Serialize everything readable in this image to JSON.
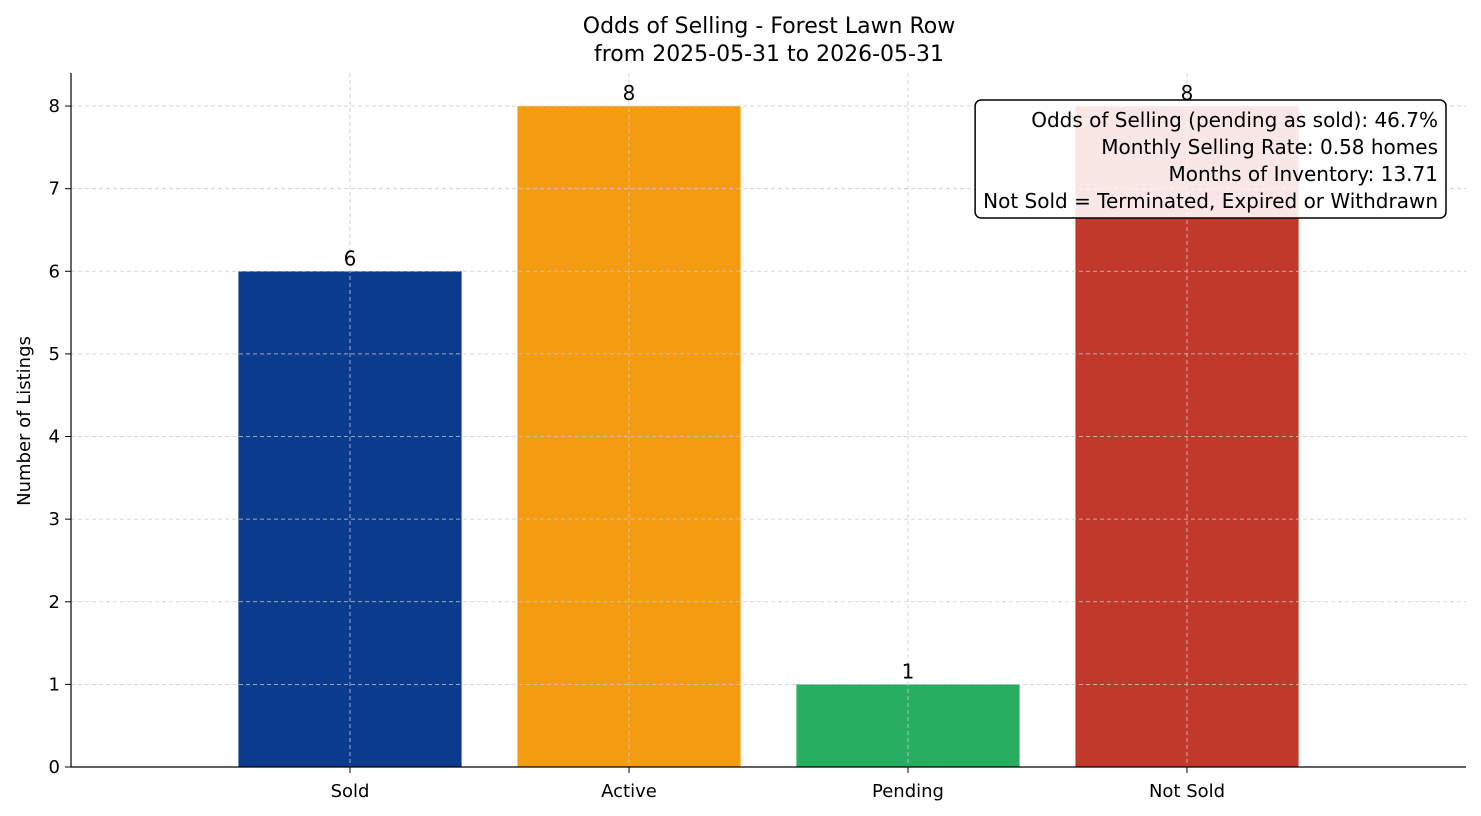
{
  "chart_data": {
    "type": "bar",
    "title": "Odds of Selling - Forest Lawn Row",
    "subtitle": "from 2025-05-31 to 2026-05-31",
    "xlabel": "",
    "ylabel": "Number of Listings",
    "categories": [
      "Sold",
      "Active",
      "Pending",
      "Not Sold"
    ],
    "values": [
      6,
      8,
      1,
      8
    ],
    "colors": [
      "#0b3b8c",
      "#f39c12",
      "#27ae60",
      "#c0392b"
    ],
    "ylim": [
      0,
      8.4
    ],
    "yticks": [
      0,
      1,
      2,
      3,
      4,
      5,
      6,
      7,
      8
    ],
    "grid": true,
    "annotation": {
      "lines": [
        "Odds of Selling (pending as sold): 46.7%",
        "Monthly Selling Rate: 0.58 homes",
        "Months of Inventory: 13.71",
        "Not Sold = Terminated, Expired or Withdrawn"
      ],
      "placement": "top-right"
    }
  }
}
